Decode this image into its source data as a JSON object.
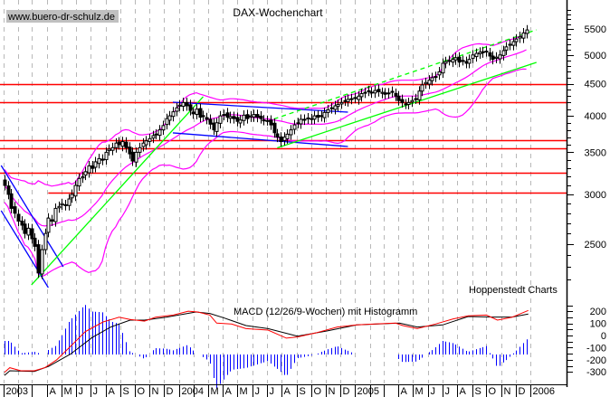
{
  "chart_data": {
    "type": "candlestick",
    "title": "DAX-Wochenchart",
    "watermark": "www.buero-dr-schulz.de",
    "source": "Hoppenstedt Charts",
    "interval": "weekly",
    "first_week": "2003-01-03",
    "y_scale": "log",
    "ylim": [
      2100,
      5900
    ],
    "y_ticks": [
      "2500",
      "3000",
      "3500",
      "4000",
      "4500",
      "5000",
      "5500"
    ],
    "x_ticks": [
      "2003",
      "",
      "",
      "A",
      "M",
      "J",
      "J",
      "A",
      "S",
      "O",
      "N",
      "D",
      "2004",
      "",
      "M",
      "A",
      "M",
      "J",
      "J",
      "A",
      "S",
      "O",
      "N",
      "D",
      "2005",
      "",
      "",
      "A",
      "M",
      "J",
      "J",
      "A",
      "S",
      "O",
      "N",
      "D",
      "2006"
    ],
    "grid": "vertical dashed, monthly",
    "closes": [
      3100,
      3000,
      2850,
      2800,
      2720,
      2680,
      2600,
      2650,
      2550,
      2480,
      2250,
      2450,
      2600,
      2750,
      2720,
      2850,
      2870,
      2900,
      2880,
      2950,
      3000,
      3100,
      3180,
      3200,
      3260,
      3330,
      3300,
      3380,
      3420,
      3400,
      3500,
      3540,
      3560,
      3620,
      3600,
      3640,
      3560,
      3480,
      3390,
      3500,
      3560,
      3620,
      3650,
      3680,
      3720,
      3740,
      3800,
      3860,
      3960,
      4000,
      4060,
      4120,
      4160,
      4200,
      4150,
      4080,
      4030,
      4100,
      3980,
      3990,
      3950,
      3880,
      3800,
      3900,
      4000,
      4020,
      3980,
      3990,
      3960,
      3920,
      3940,
      4010,
      3960,
      4000,
      4020,
      3980,
      3960,
      3940,
      3930,
      3870,
      3760,
      3700,
      3640,
      3700,
      3740,
      3800,
      3870,
      3900,
      3950,
      3940,
      3970,
      3960,
      4000,
      3980,
      3990,
      4050,
      4090,
      4120,
      4150,
      4170,
      4200,
      4230,
      4250,
      4260,
      4270,
      4300,
      4340,
      4360,
      4380,
      4350,
      4390,
      4370,
      4360,
      4330,
      4350,
      4360,
      4300,
      4230,
      4200,
      4180,
      4200,
      4230,
      4260,
      4380,
      4480,
      4520,
      4560,
      4600,
      4620,
      4700,
      4850,
      4880,
      4900,
      4920,
      4950,
      4870,
      4900,
      4850,
      4920,
      5000,
      5030,
      5050,
      5040,
      5060,
      4980,
      4920,
      4960,
      5000,
      5080,
      5150,
      5200,
      5250,
      5300,
      5350,
      5420,
      5480
    ],
    "bollinger": {
      "period": 20,
      "color": "#ff00ff"
    },
    "horizontal_lines": [
      {
        "price": 4500,
        "color": "#ff0000"
      },
      {
        "price": 4205,
        "color": "#ff0000"
      },
      {
        "price": 3660,
        "color": "#ff0000"
      },
      {
        "price": 3550,
        "color": "#ff0000"
      },
      {
        "price": 3250,
        "color": "#ff0000"
      },
      {
        "price": 3020,
        "color": "#ff0000",
        "from": "2003-04-04"
      }
    ],
    "trend_lines": [
      {
        "from": [
          "2002-12-27",
          3335
        ],
        "to": [
          "2003-05-05",
          2301
        ],
        "color": "#0000ff",
        "style": "solid"
      },
      {
        "from": [
          "2002-12-27",
          2826
        ],
        "to": [
          "2003-04-04",
          2132
        ],
        "color": "#0000ff",
        "style": "solid"
      },
      {
        "from": [
          "2003-02-28",
          2153
        ],
        "to": [
          "2004-02-20",
          4290
        ],
        "color": "#00ff00",
        "style": "solid"
      },
      {
        "from": [
          "2003-12-19",
          4205
        ],
        "to": [
          "2004-12-17",
          4055
        ],
        "color": "#0000ff",
        "style": "solid"
      },
      {
        "from": [
          "2003-12-19",
          3758
        ],
        "to": [
          "2004-12-17",
          3575
        ],
        "color": "#0000ff",
        "style": "solid"
      },
      {
        "from": [
          "2004-07-23",
          3558
        ],
        "to": [
          "2006-01-13",
          4865
        ],
        "color": "#00ff00",
        "style": "solid"
      },
      {
        "from": [
          "2004-07-16",
          3954
        ],
        "to": [
          "2006-01-13",
          5482
        ],
        "color": "#00ff00",
        "style": "dashed"
      }
    ],
    "macd": {
      "label": "MACD (12/26/9-Wochen) mit Histogramm",
      "ylim": [
        -330,
        230
      ],
      "y_ticks": [
        "200",
        "100",
        "0",
        "-100",
        "-200",
        "-300"
      ],
      "macd_color": "#ff0000",
      "signal_color": "#000000",
      "histogram_color": "#0000ff",
      "macd_points": [
        [
          "2003-01-03",
          -304
        ],
        [
          "2003-01-14",
          -266
        ],
        [
          "2003-02-06",
          -291
        ],
        [
          "2003-03-06",
          -291
        ],
        [
          "2003-03-28",
          -266
        ],
        [
          "2003-04-21",
          -202
        ],
        [
          "2003-05-20",
          -90
        ],
        [
          "2003-06-20",
          32
        ],
        [
          "2003-07-27",
          112
        ],
        [
          "2003-08-29",
          151
        ],
        [
          "2003-09-21",
          132
        ],
        [
          "2003-10-21",
          119
        ],
        [
          "2003-11-13",
          151
        ],
        [
          "2003-12-20",
          169
        ],
        [
          "2004-01-20",
          201
        ],
        [
          "2004-02-09",
          194
        ],
        [
          "2004-03-05",
          169
        ],
        [
          "2004-03-19",
          102
        ],
        [
          "2004-04-19",
          95
        ],
        [
          "2004-05-19",
          57
        ],
        [
          "2004-07-04",
          45
        ],
        [
          "2004-08-11",
          -22
        ],
        [
          "2004-09-03",
          -12
        ],
        [
          "2004-10-10",
          20
        ],
        [
          "2004-11-25",
          70
        ],
        [
          "2005-01-04",
          87
        ],
        [
          "2005-02-11",
          95
        ],
        [
          "2005-03-26",
          102
        ],
        [
          "2005-04-10",
          82
        ],
        [
          "2005-05-10",
          57
        ],
        [
          "2005-06-17",
          95
        ],
        [
          "2005-07-24",
          137
        ],
        [
          "2005-08-24",
          162
        ],
        [
          "2005-10-01",
          169
        ],
        [
          "2005-10-24",
          127
        ],
        [
          "2005-11-23",
          151
        ],
        [
          "2005-12-27",
          207
        ]
      ],
      "signal_points": [
        [
          "2003-01-03",
          -329
        ],
        [
          "2003-01-14",
          -291
        ],
        [
          "2003-03-06",
          -296
        ],
        [
          "2003-04-05",
          -254
        ],
        [
          "2003-05-20",
          -154
        ],
        [
          "2003-07-04",
          -17
        ],
        [
          "2003-08-12",
          70
        ],
        [
          "2003-09-21",
          127
        ],
        [
          "2003-10-21",
          127
        ],
        [
          "2003-12-05",
          151
        ],
        [
          "2004-02-05",
          194
        ],
        [
          "2004-03-05",
          182
        ],
        [
          "2004-04-04",
          144
        ],
        [
          "2004-05-19",
          82
        ],
        [
          "2004-07-04",
          57
        ],
        [
          "2004-09-03",
          -5
        ],
        [
          "2004-11-03",
          37
        ],
        [
          "2005-01-04",
          87
        ],
        [
          "2005-04-03",
          102
        ],
        [
          "2005-05-10",
          70
        ],
        [
          "2005-07-02",
          87
        ],
        [
          "2005-08-24",
          157
        ],
        [
          "2005-10-16",
          152
        ],
        [
          "2005-11-23",
          152
        ],
        [
          "2005-12-27",
          177
        ]
      ]
    }
  }
}
